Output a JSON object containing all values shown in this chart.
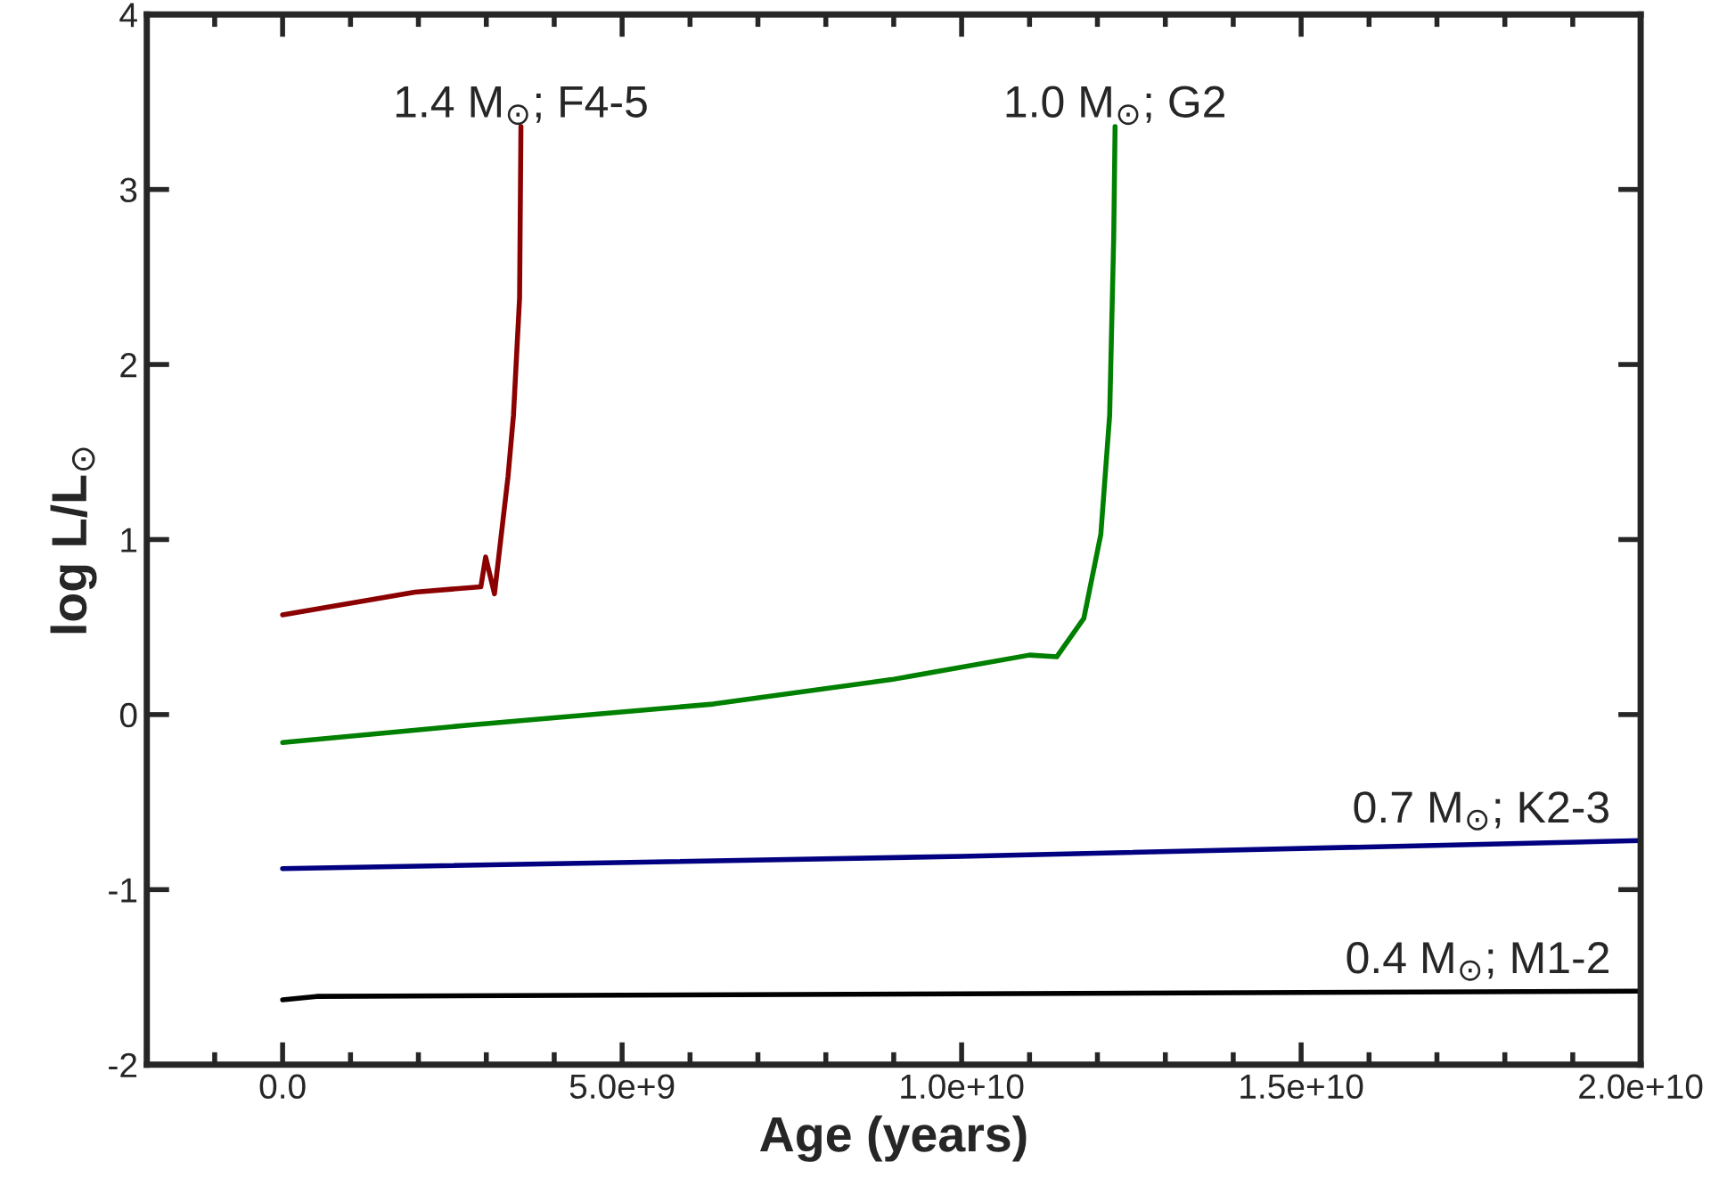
{
  "chart_data": {
    "type": "line",
    "xlabel": "Age (years)",
    "ylabel": "log L/L$_{⊙}$",
    "xlim": [
      -2000000000.0,
      20000000000.0
    ],
    "xticks": [
      {
        "value": 0,
        "label": "0.0"
      },
      {
        "value": 5000000000.0,
        "label": "5.0e+9"
      },
      {
        "value": 10000000000.0,
        "label": "1.0e+10"
      },
      {
        "value": 15000000000.0,
        "label": "1.5e+10"
      },
      {
        "value": 20000000000.0,
        "label": "2.0e+10"
      }
    ],
    "ylim": [
      -2,
      4
    ],
    "yticks": [
      -2,
      -1,
      0,
      1,
      2,
      3,
      4
    ],
    "grid": false,
    "legend": false,
    "series": [
      {
        "name": "1.4 M$_{⊙}$; F4-5",
        "color": "#8b0000",
        "x": [
          0,
          1950000000.0,
          2920000000.0,
          2990000000.0,
          3120000000.0,
          3320000000.0,
          3400000000.0,
          3490000000.0,
          3510000000.0
        ],
        "values": [
          0.57,
          0.7,
          0.73,
          0.9,
          0.69,
          1.36,
          1.71,
          2.38,
          3.36
        ]
      },
      {
        "name": "1.0 M$_{⊙}$; G2",
        "color": "#008000",
        "x": [
          0,
          2740000000.0,
          6340000000.0,
          8970000000.0,
          11000000000.0,
          11400000000.0,
          11800000000.0,
          12050000000.0,
          12180000000.0,
          12240000000.0,
          12260000000.0
        ],
        "values": [
          -0.16,
          -0.06,
          0.06,
          0.2,
          0.34,
          0.33,
          0.55,
          1.03,
          1.71,
          2.73,
          3.36
        ]
      },
      {
        "name": "0.7 M$_{⊙}$; K2-3",
        "color": "#000080",
        "x": [
          0,
          10000000000.0,
          20000000000.0
        ],
        "values": [
          -0.88,
          -0.81,
          -0.72
        ]
      },
      {
        "name": "0.4 M$_{⊙}$; M1-2",
        "color": "#000000",
        "x": [
          0,
          500000000.0,
          20000000000.0
        ],
        "values": [
          -1.63,
          -1.61,
          -1.58
        ]
      }
    ]
  }
}
